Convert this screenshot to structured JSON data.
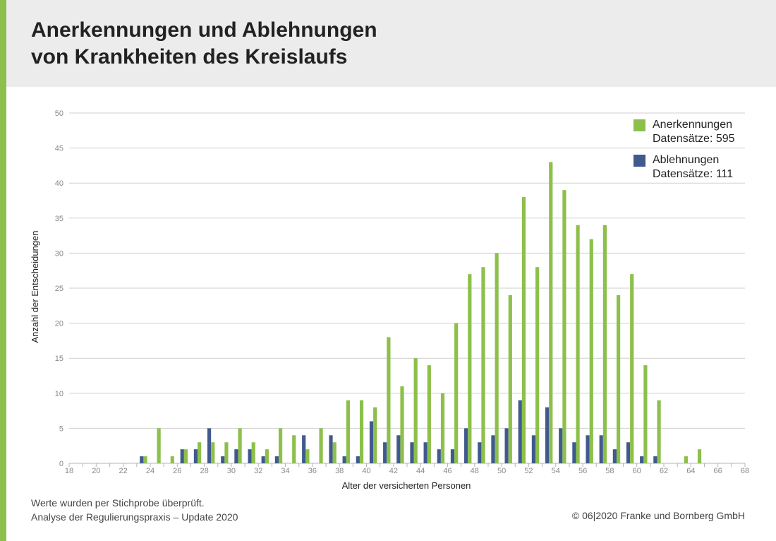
{
  "header": {
    "title_line1": "Anerkennungen und Ablehnungen",
    "title_line2": "von Krankheiten des Kreislaufs"
  },
  "footer": {
    "note_line1": "Werte wurden per Stichprobe überprüft.",
    "note_line2": "Analyse der Regulierungspraxis – Update 2020",
    "copyright": "© 06|2020 Franke und Bornberg GmbH"
  },
  "colors": {
    "accent": "#8dc04b",
    "anerkennungen": "#8dc04b",
    "ablehnungen": "#405a8e",
    "header_bg": "#ececec",
    "grid": "#cfcfcf"
  },
  "chart_data": {
    "type": "bar",
    "title": "Anerkennungen und Ablehnungen von Krankheiten des Kreislaufs",
    "xlabel": "Alter der versicherten Personen",
    "ylabel": "Anzahl der Entscheidungen",
    "ylim": [
      0,
      50
    ],
    "yticks": [
      0,
      5,
      10,
      15,
      20,
      25,
      30,
      35,
      40,
      45,
      50
    ],
    "xlim": [
      18,
      68
    ],
    "xticks": [
      18,
      20,
      22,
      24,
      26,
      28,
      30,
      32,
      34,
      36,
      38,
      40,
      42,
      44,
      46,
      48,
      50,
      52,
      54,
      56,
      58,
      60,
      62,
      64,
      66,
      68
    ],
    "grid": true,
    "legend_position": "top-right",
    "x": [
      18,
      19,
      20,
      21,
      22,
      23,
      24,
      25,
      26,
      27,
      28,
      29,
      30,
      31,
      32,
      33,
      34,
      35,
      36,
      37,
      38,
      39,
      40,
      41,
      42,
      43,
      44,
      45,
      46,
      47,
      48,
      49,
      50,
      51,
      52,
      53,
      54,
      55,
      56,
      57,
      58,
      59,
      60,
      61,
      62,
      63,
      64,
      65,
      66,
      67
    ],
    "series": [
      {
        "name": "Anerkennungen",
        "legend_detail": "Datensätze: 595",
        "color": "#8dc04b",
        "values": [
          0,
          0,
          0,
          0,
          0,
          1,
          5,
          1,
          2,
          3,
          3,
          3,
          5,
          3,
          2,
          5,
          4,
          2,
          5,
          3,
          9,
          9,
          8,
          18,
          11,
          15,
          14,
          10,
          20,
          27,
          28,
          30,
          24,
          38,
          28,
          43,
          39,
          34,
          32,
          34,
          24,
          27,
          14,
          9,
          0,
          1,
          2,
          0,
          0,
          0
        ]
      },
      {
        "name": "Ablehnungen",
        "legend_detail": "Datensätze: 111",
        "color": "#405a8e",
        "values": [
          0,
          0,
          0,
          0,
          0,
          1,
          0,
          0,
          2,
          2,
          5,
          1,
          2,
          2,
          1,
          1,
          0,
          4,
          0,
          4,
          1,
          1,
          6,
          3,
          4,
          3,
          3,
          2,
          2,
          5,
          3,
          4,
          5,
          9,
          4,
          8,
          5,
          3,
          4,
          4,
          2,
          3,
          1,
          1,
          0,
          0,
          0,
          0,
          0,
          0
        ]
      }
    ]
  }
}
